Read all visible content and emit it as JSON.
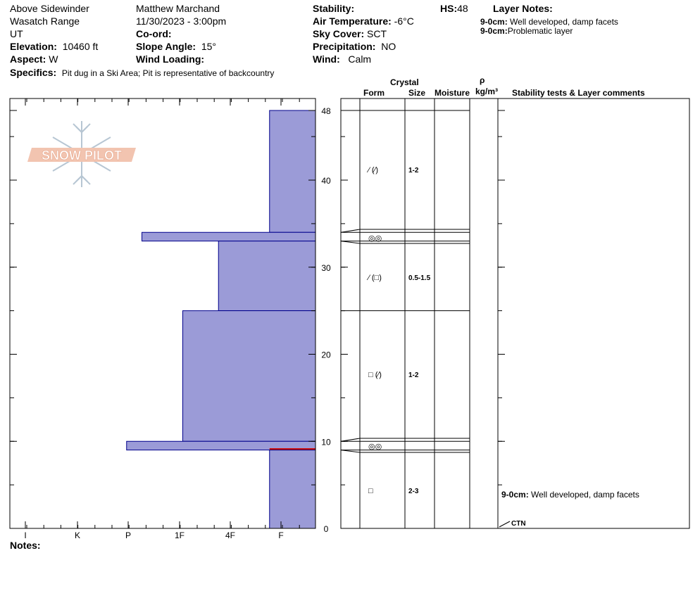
{
  "header": {
    "location": "Above Sidewinder",
    "range": "Wasatch Range",
    "state": "UT",
    "elevation_label": "Elevation:",
    "elevation_value": "10460 ft",
    "aspect_label": "Aspect:",
    "aspect_value": "W",
    "specifics_label": "Specifics:",
    "specifics_value": "Pit dug in a Ski Area; Pit is representative of backcountry",
    "observer": "Matthew Marchand",
    "datetime": "11/30/2023 - 3:00pm",
    "coord_label": "Co-ord:",
    "slope_label": "Slope Angle:",
    "slope_value": "15°",
    "wind_loading_label": "Wind Loading:",
    "stability_label": "Stability:",
    "air_temp_label": "Air Temperature:",
    "air_temp_value": "-6°C",
    "sky_label": "Sky Cover:",
    "sky_value": "SCT",
    "precip_label": "Precipitation:",
    "precip_value": "NO",
    "wind_label": "Wind:",
    "wind_value": "Calm",
    "hs_label": "HS:",
    "hs_value": "48",
    "layer_notes_title": "Layer Notes:",
    "layer_notes": [
      {
        "depth": "9-0cm:",
        "text": "Well developed, damp facets"
      },
      {
        "depth": "9-0cm:",
        "text": "Problematic layer"
      }
    ],
    "notes_label": "Notes:"
  },
  "logo": {
    "text": "SNOW PILOT",
    "color": "#f2c4b0"
  },
  "colors": {
    "bar_fill": "#9b9bd7",
    "bar_stroke": "#00008b",
    "problem_line": "#cc0000"
  },
  "table_headers": {
    "crystal": "Crystal",
    "form": "Form",
    "size": "Size",
    "moisture": "Moisture",
    "rho": "ρ",
    "density_unit": "kg/m³",
    "comments": "Stability tests & Layer comments"
  },
  "chart_data": {
    "type": "bar",
    "orientation": "horizontal",
    "xlabel": "",
    "ylabel": "",
    "ylim": [
      0,
      48
    ],
    "hardness_scale": [
      "I",
      "K",
      "P",
      "1F",
      "4F",
      "F"
    ],
    "y_ticks": [
      0,
      10,
      20,
      30,
      40,
      48
    ],
    "layers": [
      {
        "top": 48,
        "bottom": 34,
        "hardness": 0.9,
        "form": "⁄ (⁄)",
        "size": "1-2"
      },
      {
        "top": 34,
        "bottom": 33,
        "hardness": 3.4,
        "form": "◎◎",
        "size": ""
      },
      {
        "top": 33,
        "bottom": 25,
        "hardness": 1.9,
        "form": "⁄ (□)",
        "size": "0.5-1.5"
      },
      {
        "top": 25,
        "bottom": 10,
        "hardness": 2.6,
        "form": "□ (⁄)",
        "size": "1-2"
      },
      {
        "top": 10,
        "bottom": 9,
        "hardness": 3.7,
        "form": "◎◎",
        "size": ""
      },
      {
        "top": 9,
        "bottom": 0,
        "hardness": 0.9,
        "form": "□",
        "size": "2-3"
      }
    ],
    "problem_depth": 9,
    "layer_comment": {
      "depth": "9-0cm:",
      "text": "Well developed, damp facets"
    },
    "test_label": "CTN"
  }
}
